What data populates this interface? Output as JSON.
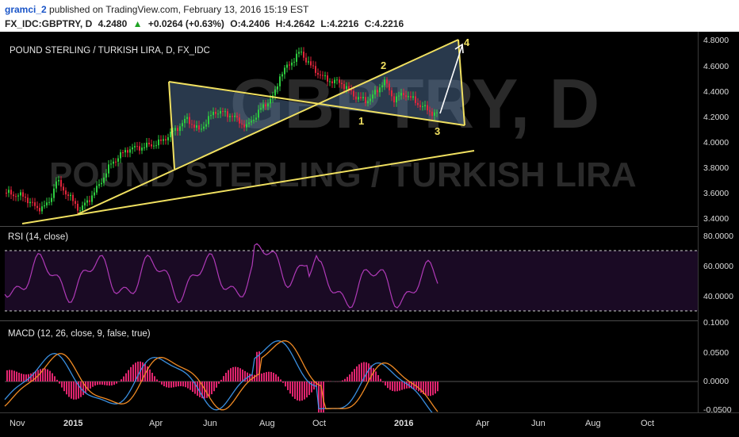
{
  "header": {
    "username": "gramci_2",
    "published_text": "published on TradingView.com, February 13, 2016 15:19 EST",
    "symbol": "FX_IDC:GBPTRY, D",
    "last": "4.2480",
    "change": "+0.0264 (+0.63%)",
    "open": "O:4.2406",
    "high": "H:4.2642",
    "low": "L:4.2216",
    "close": "C:4.2216"
  },
  "main": {
    "title": "POUND STERLING / TURKISH LIRA, D, FX_IDC",
    "watermark_top": "GBPTRY, D",
    "watermark_bottom": "POUND STERLING / TURKISH LIRA",
    "y_labels": [
      "4.8000",
      "4.6000",
      "4.4000",
      "4.2000",
      "4.0000",
      "3.8000",
      "3.6000",
      "3.4000"
    ],
    "wave_labels": [
      "1",
      "2",
      "3",
      "4"
    ]
  },
  "rsi": {
    "title": "RSI (14, close)",
    "y_labels": [
      "80.0000",
      "60.0000",
      "40.0000"
    ]
  },
  "macd": {
    "title": "MACD (12, 26, close, 9, false, true)",
    "y_labels": [
      "0.1000",
      "0.0500",
      "0.0000",
      "-0.0500"
    ]
  },
  "x_axis": {
    "labels": [
      "Nov",
      "2015",
      "Apr",
      "Jun",
      "Aug",
      "Oct",
      "2016",
      "Apr",
      "Jun",
      "Aug",
      "Oct"
    ]
  },
  "colors": {
    "up_candle": "#2ecc40",
    "down_candle": "#e0263c",
    "trendline": "#f0e060",
    "triangle_fill": "#5a7fa8",
    "rsi_line": "#b03ab8",
    "macd_line": "#3a8fe0",
    "signal_line": "#f08a24",
    "histogram": "#e0246e"
  }
}
